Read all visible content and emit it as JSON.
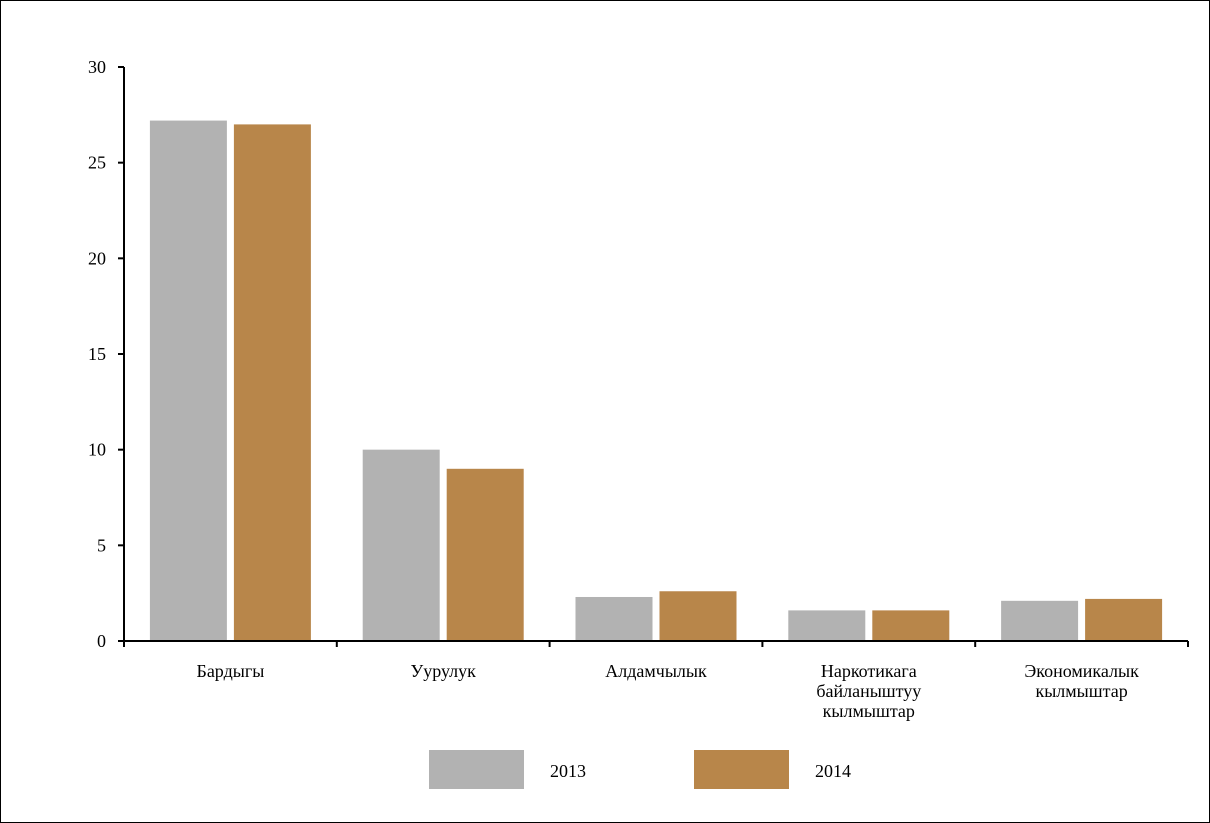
{
  "chart_data": {
    "type": "bar",
    "title": "",
    "xlabel": "",
    "ylabel": "",
    "ylim": [
      0,
      30
    ],
    "yticks": [
      0,
      5,
      10,
      15,
      20,
      25,
      30
    ],
    "grid": false,
    "legend_position": "bottom",
    "categories": [
      [
        "Бардыгы"
      ],
      [
        "Уурулук"
      ],
      [
        "Алдамчылык"
      ],
      [
        "Наркотикага",
        "байланыштуу",
        "кылмыштар"
      ],
      [
        "Экономикалык",
        "кылмыштар"
      ]
    ],
    "series": [
      {
        "name": "2013",
        "color": "#b2b2b2",
        "values": [
          27.2,
          10.0,
          2.3,
          1.6,
          2.1
        ]
      },
      {
        "name": "2014",
        "color": "#b8864a",
        "values": [
          27.0,
          9.0,
          2.6,
          1.6,
          2.2
        ]
      }
    ]
  }
}
